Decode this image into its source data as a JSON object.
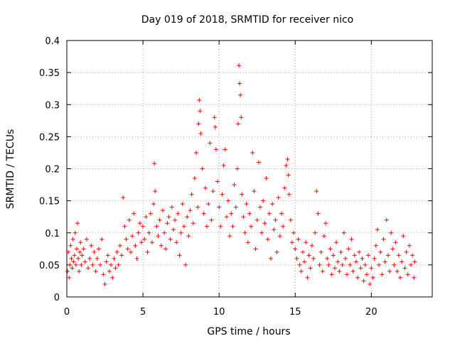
{
  "chart_data": {
    "type": "scatter",
    "title": "Day 019 of 2018, SRMTID for receiver nico",
    "xlabel": "GPS time / hours",
    "ylabel": "SRMTID / TECUs",
    "xlim": [
      0,
      24
    ],
    "ylim": [
      0,
      0.4
    ],
    "xticks": [
      0,
      5,
      10,
      15,
      20
    ],
    "xtick_labels": [
      "0",
      "5",
      "10",
      "15",
      "20"
    ],
    "yticks": [
      0,
      0.05,
      0.1,
      0.15,
      0.2,
      0.25,
      0.3,
      0.35,
      0.4
    ],
    "ytick_labels": [
      "0",
      "0.05",
      "0.1",
      "0.15",
      "0.2",
      "0.25",
      "0.3",
      "0.35",
      "0.4"
    ],
    "grid": true,
    "marker": "+",
    "color": "#ff0000",
    "series": [
      {
        "points": [
          [
            0.05,
            0.04
          ],
          [
            0.1,
            0.07
          ],
          [
            0.15,
            0.03
          ],
          [
            0.2,
            0.05
          ],
          [
            0.25,
            0.08
          ],
          [
            0.3,
            0.06
          ],
          [
            0.35,
            0.045
          ],
          [
            0.4,
            0.09
          ],
          [
            0.45,
            0.055
          ],
          [
            0.5,
            0.065
          ],
          [
            0.55,
            0.1
          ],
          [
            0.6,
            0.05
          ],
          [
            0.65,
            0.075
          ],
          [
            0.7,
            0.115
          ],
          [
            0.75,
            0.06
          ],
          [
            0.8,
            0.04
          ],
          [
            0.85,
            0.07
          ],
          [
            0.9,
            0.085
          ],
          [
            0.95,
            0.05
          ],
          [
            1.0,
            0.065
          ],
          [
            1.1,
            0.075
          ],
          [
            1.2,
            0.055
          ],
          [
            1.3,
            0.09
          ],
          [
            1.4,
            0.045
          ],
          [
            1.5,
            0.06
          ],
          [
            1.6,
            0.08
          ],
          [
            1.7,
            0.05
          ],
          [
            1.8,
            0.07
          ],
          [
            1.9,
            0.04
          ],
          [
            2.0,
            0.06
          ],
          [
            2.1,
            0.075
          ],
          [
            2.2,
            0.05
          ],
          [
            2.3,
            0.09
          ],
          [
            2.4,
            0.035
          ],
          [
            2.5,
            0.02
          ],
          [
            2.6,
            0.055
          ],
          [
            2.7,
            0.065
          ],
          [
            2.8,
            0.04
          ],
          [
            2.9,
            0.05
          ],
          [
            3.0,
            0.03
          ],
          [
            3.1,
            0.06
          ],
          [
            3.2,
            0.045
          ],
          [
            3.3,
            0.07
          ],
          [
            3.4,
            0.05
          ],
          [
            3.5,
            0.08
          ],
          [
            3.6,
            0.065
          ],
          [
            3.7,
            0.155
          ],
          [
            3.8,
            0.11
          ],
          [
            3.9,
            0.09
          ],
          [
            4.0,
            0.075
          ],
          [
            4.1,
            0.12
          ],
          [
            4.2,
            0.07
          ],
          [
            4.3,
            0.095
          ],
          [
            4.4,
            0.13
          ],
          [
            4.5,
            0.08
          ],
          [
            4.6,
            0.06
          ],
          [
            4.7,
            0.1
          ],
          [
            4.8,
            0.115
          ],
          [
            4.9,
            0.085
          ],
          [
            5.0,
            0.11
          ],
          [
            5.1,
            0.09
          ],
          [
            5.2,
            0.125
          ],
          [
            5.3,
            0.07
          ],
          [
            5.4,
            0.1
          ],
          [
            5.5,
            0.13
          ],
          [
            5.6,
            0.085
          ],
          [
            5.7,
            0.145
          ],
          [
            5.75,
            0.208
          ],
          [
            5.8,
            0.165
          ],
          [
            5.9,
            0.11
          ],
          [
            6.0,
            0.095
          ],
          [
            6.1,
            0.12
          ],
          [
            6.2,
            0.08
          ],
          [
            6.3,
            0.135
          ],
          [
            6.4,
            0.1
          ],
          [
            6.5,
            0.075
          ],
          [
            6.6,
            0.115
          ],
          [
            6.7,
            0.125
          ],
          [
            6.8,
            0.09
          ],
          [
            6.9,
            0.14
          ],
          [
            7.0,
            0.105
          ],
          [
            7.1,
            0.12
          ],
          [
            7.2,
            0.085
          ],
          [
            7.3,
            0.13
          ],
          [
            7.4,
            0.065
          ],
          [
            7.5,
            0.1
          ],
          [
            7.6,
            0.145
          ],
          [
            7.7,
            0.11
          ],
          [
            7.8,
            0.05
          ],
          [
            7.9,
            0.125
          ],
          [
            8.0,
            0.095
          ],
          [
            8.1,
            0.135
          ],
          [
            8.2,
            0.16
          ],
          [
            8.3,
            0.115
          ],
          [
            8.4,
            0.185
          ],
          [
            8.5,
            0.225
          ],
          [
            8.6,
            0.14
          ],
          [
            8.65,
            0.27
          ],
          [
            8.7,
            0.307
          ],
          [
            8.75,
            0.29
          ],
          [
            8.8,
            0.255
          ],
          [
            8.9,
            0.2
          ],
          [
            9.0,
            0.13
          ],
          [
            9.1,
            0.17
          ],
          [
            9.2,
            0.11
          ],
          [
            9.3,
            0.145
          ],
          [
            9.4,
            0.24
          ],
          [
            9.5,
            0.12
          ],
          [
            9.6,
            0.165
          ],
          [
            9.7,
            0.28
          ],
          [
            9.75,
            0.265
          ],
          [
            9.8,
            0.23
          ],
          [
            9.9,
            0.18
          ],
          [
            10.0,
            0.14
          ],
          [
            10.1,
            0.11
          ],
          [
            10.2,
            0.16
          ],
          [
            10.3,
            0.205
          ],
          [
            10.4,
            0.23
          ],
          [
            10.5,
            0.125
          ],
          [
            10.6,
            0.15
          ],
          [
            10.7,
            0.095
          ],
          [
            10.8,
            0.13
          ],
          [
            10.9,
            0.11
          ],
          [
            11.0,
            0.175
          ],
          [
            11.1,
            0.14
          ],
          [
            11.2,
            0.2
          ],
          [
            11.25,
            0.27
          ],
          [
            11.3,
            0.361
          ],
          [
            11.35,
            0.333
          ],
          [
            11.4,
            0.315
          ],
          [
            11.45,
            0.28
          ],
          [
            11.5,
            0.16
          ],
          [
            11.6,
            0.125
          ],
          [
            11.7,
            0.1
          ],
          [
            11.8,
            0.145
          ],
          [
            11.9,
            0.085
          ],
          [
            12.0,
            0.13
          ],
          [
            12.1,
            0.11
          ],
          [
            12.2,
            0.225
          ],
          [
            12.3,
            0.165
          ],
          [
            12.4,
            0.075
          ],
          [
            12.5,
            0.12
          ],
          [
            12.6,
            0.21
          ],
          [
            12.7,
            0.14
          ],
          [
            12.8,
            0.1
          ],
          [
            12.9,
            0.15
          ],
          [
            13.0,
            0.115
          ],
          [
            13.1,
            0.185
          ],
          [
            13.2,
            0.09
          ],
          [
            13.3,
            0.13
          ],
          [
            13.4,
            0.06
          ],
          [
            13.5,
            0.145
          ],
          [
            13.6,
            0.105
          ],
          [
            13.7,
            0.12
          ],
          [
            13.8,
            0.07
          ],
          [
            13.9,
            0.155
          ],
          [
            14.0,
            0.095
          ],
          [
            14.1,
            0.13
          ],
          [
            14.2,
            0.11
          ],
          [
            14.3,
            0.17
          ],
          [
            14.4,
            0.205
          ],
          [
            14.5,
            0.215
          ],
          [
            14.55,
            0.19
          ],
          [
            14.6,
            0.16
          ],
          [
            14.7,
            0.12
          ],
          [
            14.8,
            0.085
          ],
          [
            14.9,
            0.1
          ],
          [
            15.0,
            0.075
          ],
          [
            15.1,
            0.06
          ],
          [
            15.2,
            0.09
          ],
          [
            15.3,
            0.05
          ],
          [
            15.4,
            0.04
          ],
          [
            15.5,
            0.07
          ],
          [
            15.6,
            0.055
          ],
          [
            15.7,
            0.085
          ],
          [
            15.8,
            0.03
          ],
          [
            15.9,
            0.065
          ],
          [
            16.0,
            0.045
          ],
          [
            16.1,
            0.08
          ],
          [
            16.2,
            0.06
          ],
          [
            16.3,
            0.1
          ],
          [
            16.4,
            0.165
          ],
          [
            16.5,
            0.13
          ],
          [
            16.6,
            0.05
          ],
          [
            16.7,
            0.07
          ],
          [
            16.8,
            0.04
          ],
          [
            16.9,
            0.095
          ],
          [
            17.0,
            0.115
          ],
          [
            17.1,
            0.06
          ],
          [
            17.2,
            0.05
          ],
          [
            17.3,
            0.075
          ],
          [
            17.4,
            0.035
          ],
          [
            17.5,
            0.065
          ],
          [
            17.6,
            0.045
          ],
          [
            17.7,
            0.085
          ],
          [
            17.8,
            0.055
          ],
          [
            17.9,
            0.04
          ],
          [
            18.0,
            0.07
          ],
          [
            18.1,
            0.05
          ],
          [
            18.2,
            0.1
          ],
          [
            18.3,
            0.06
          ],
          [
            18.4,
            0.035
          ],
          [
            18.5,
            0.075
          ],
          [
            18.6,
            0.05
          ],
          [
            18.7,
            0.09
          ],
          [
            18.8,
            0.04
          ],
          [
            18.9,
            0.065
          ],
          [
            19.0,
            0.055
          ],
          [
            19.1,
            0.03
          ],
          [
            19.2,
            0.07
          ],
          [
            19.3,
            0.045
          ],
          [
            19.4,
            0.06
          ],
          [
            19.5,
            0.025
          ],
          [
            19.6,
            0.05
          ],
          [
            19.7,
            0.035
          ],
          [
            19.8,
            0.065
          ],
          [
            19.9,
            0.02
          ],
          [
            20.0,
            0.045
          ],
          [
            20.1,
            0.03
          ],
          [
            20.2,
            0.06
          ],
          [
            20.3,
            0.08
          ],
          [
            20.4,
            0.105
          ],
          [
            20.5,
            0.05
          ],
          [
            20.6,
            0.07
          ],
          [
            20.7,
            0.035
          ],
          [
            20.8,
            0.09
          ],
          [
            20.9,
            0.055
          ],
          [
            21.0,
            0.12
          ],
          [
            21.1,
            0.065
          ],
          [
            21.2,
            0.04
          ],
          [
            21.3,
            0.1
          ],
          [
            21.4,
            0.075
          ],
          [
            21.5,
            0.05
          ],
          [
            21.6,
            0.085
          ],
          [
            21.7,
            0.04
          ],
          [
            21.8,
            0.065
          ],
          [
            21.9,
            0.03
          ],
          [
            22.0,
            0.055
          ],
          [
            22.1,
            0.095
          ],
          [
            22.2,
            0.045
          ],
          [
            22.3,
            0.07
          ],
          [
            22.4,
            0.035
          ],
          [
            22.5,
            0.08
          ],
          [
            22.6,
            0.05
          ],
          [
            22.7,
            0.065
          ],
          [
            22.8,
            0.03
          ],
          [
            22.85,
            0.055
          ]
        ]
      }
    ]
  }
}
